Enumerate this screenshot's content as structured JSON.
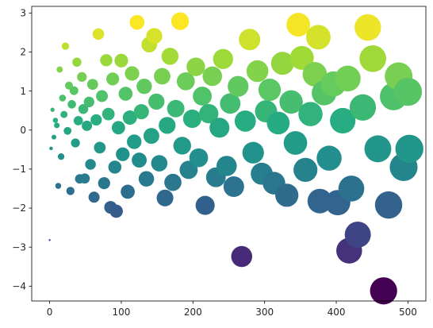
{
  "chart_data": {
    "type": "scatter",
    "title": "",
    "xlabel": "",
    "ylabel": "",
    "xlim": [
      -25,
      525
    ],
    "ylim": [
      -4.38,
      3.17
    ],
    "x_ticks": [
      0,
      100,
      200,
      300,
      400,
      500
    ],
    "y_ticks": [
      -4,
      -3,
      -2,
      -1,
      0,
      1,
      2,
      3
    ],
    "x_tick_labels": [
      "0",
      "100",
      "200",
      "300",
      "400",
      "500"
    ],
    "y_tick_labels": [
      "−4",
      "−3",
      "−2",
      "−1",
      "0",
      "1",
      "2",
      "3"
    ],
    "colormap": "viridis",
    "color_encodes": "y",
    "size_encodes": "x",
    "grid": false,
    "legend": "none",
    "points_sampled": [
      {
        "x": 0,
        "y": -2.82
      },
      {
        "x": 2,
        "y": -0.47
      },
      {
        "x": 4,
        "y": 0.52
      },
      {
        "x": 6,
        "y": -0.18
      },
      {
        "x": 8,
        "y": 0.25
      },
      {
        "x": 10,
        "y": 0.12
      },
      {
        "x": 12,
        "y": -1.43
      },
      {
        "x": 14,
        "y": 1.55
      },
      {
        "x": 16,
        "y": -0.68
      },
      {
        "x": 18,
        "y": 0.82
      },
      {
        "x": 20,
        "y": 0.4
      },
      {
        "x": 22,
        "y": 2.15
      },
      {
        "x": 25,
        "y": -0.02
      },
      {
        "x": 27,
        "y": 1.14
      },
      {
        "x": 29,
        "y": -1.56
      },
      {
        "x": 31,
        "y": 0.66
      },
      {
        "x": 34,
        "y": 1.01
      },
      {
        "x": 36,
        "y": -0.33
      },
      {
        "x": 38,
        "y": 1.74
      },
      {
        "x": 40,
        "y": 0.24
      },
      {
        "x": 42,
        "y": -1.25
      },
      {
        "x": 45,
        "y": 1.36
      },
      {
        "x": 47,
        "y": 0.54
      },
      {
        "x": 49,
        "y": -1.24
      },
      {
        "x": 52,
        "y": 0.11
      },
      {
        "x": 55,
        "y": 0.72
      },
      {
        "x": 57,
        "y": -0.88
      },
      {
        "x": 60,
        "y": 1.17
      },
      {
        "x": 62,
        "y": -1.72
      },
      {
        "x": 65,
        "y": 0.26
      },
      {
        "x": 68,
        "y": 2.46
      },
      {
        "x": 70,
        "y": -0.45
      },
      {
        "x": 73,
        "y": 0.87
      },
      {
        "x": 76,
        "y": -1.36
      },
      {
        "x": 79,
        "y": 1.79
      },
      {
        "x": 82,
        "y": 0.41
      },
      {
        "x": 85,
        "y": -1.98
      },
      {
        "x": 88,
        "y": 1.31
      },
      {
        "x": 91,
        "y": -0.95
      },
      {
        "x": 93,
        "y": -2.08
      },
      {
        "x": 96,
        "y": 0.06
      },
      {
        "x": 100,
        "y": 1.78
      },
      {
        "x": 102,
        "y": -0.62
      },
      {
        "x": 106,
        "y": 0.93
      },
      {
        "x": 109,
        "y": -1.58
      },
      {
        "x": 112,
        "y": 0.32
      },
      {
        "x": 115,
        "y": 1.45
      },
      {
        "x": 118,
        "y": -0.3
      },
      {
        "x": 122,
        "y": 2.76
      },
      {
        "x": 125,
        "y": -0.77
      },
      {
        "x": 128,
        "y": 0.47
      },
      {
        "x": 132,
        "y": 1.12
      },
      {
        "x": 135,
        "y": -1.25
      },
      {
        "x": 139,
        "y": 2.19
      },
      {
        "x": 142,
        "y": -0.15
      },
      {
        "x": 146,
        "y": 2.41
      },
      {
        "x": 149,
        "y": 0.73
      },
      {
        "x": 153,
        "y": -0.85
      },
      {
        "x": 157,
        "y": 1.38
      },
      {
        "x": 161,
        "y": -1.74
      },
      {
        "x": 164,
        "y": 0.12
      },
      {
        "x": 168,
        "y": 1.89
      },
      {
        "x": 172,
        "y": -1.34
      },
      {
        "x": 176,
        "y": 0.55
      },
      {
        "x": 182,
        "y": 2.79
      },
      {
        "x": 185,
        "y": -0.4
      },
      {
        "x": 190,
        "y": 1.25
      },
      {
        "x": 194,
        "y": -1.02
      },
      {
        "x": 199,
        "y": 0.29
      },
      {
        "x": 204,
        "y": 1.62
      },
      {
        "x": 208,
        "y": -0.71
      },
      {
        "x": 213,
        "y": 0.87
      },
      {
        "x": 217,
        "y": -1.93
      },
      {
        "x": 222,
        "y": 0.42
      },
      {
        "x": 227,
        "y": 1.38
      },
      {
        "x": 232,
        "y": -1.21
      },
      {
        "x": 237,
        "y": 0.06
      },
      {
        "x": 242,
        "y": 1.82
      },
      {
        "x": 247,
        "y": -0.92
      },
      {
        "x": 252,
        "y": 0.68
      },
      {
        "x": 257,
        "y": -1.45
      },
      {
        "x": 263,
        "y": 1.12
      },
      {
        "x": 268,
        "y": -3.24
      },
      {
        "x": 273,
        "y": 0.23
      },
      {
        "x": 279,
        "y": 2.32
      },
      {
        "x": 284,
        "y": -0.58
      },
      {
        "x": 290,
        "y": 1.51
      },
      {
        "x": 296,
        "y": -1.12
      },
      {
        "x": 302,
        "y": 0.48
      },
      {
        "x": 307,
        "y": 1.03
      },
      {
        "x": 313,
        "y": -1.36
      },
      {
        "x": 319,
        "y": 0.18
      },
      {
        "x": 325,
        "y": 1.71
      },
      {
        "x": 331,
        "y": -1.67
      },
      {
        "x": 337,
        "y": 0.72
      },
      {
        "x": 343,
        "y": -0.33
      },
      {
        "x": 347,
        "y": 2.7
      },
      {
        "x": 352,
        "y": 1.85
      },
      {
        "x": 357,
        "y": -1.02
      },
      {
        "x": 364,
        "y": 0.41
      },
      {
        "x": 370,
        "y": 1.43
      },
      {
        "x": 375,
        "y": 2.38
      },
      {
        "x": 377,
        "y": -1.82
      },
      {
        "x": 383,
        "y": 0.95
      },
      {
        "x": 390,
        "y": -0.72
      },
      {
        "x": 396,
        "y": 1.18
      },
      {
        "x": 402,
        "y": -1.86
      },
      {
        "x": 409,
        "y": 0.24
      },
      {
        "x": 416,
        "y": 1.32
      },
      {
        "x": 418,
        "y": -3.09
      },
      {
        "x": 421,
        "y": -1.5
      },
      {
        "x": 430,
        "y": -2.68
      },
      {
        "x": 437,
        "y": 0.58
      },
      {
        "x": 444,
        "y": 2.63
      },
      {
        "x": 451,
        "y": 1.83
      },
      {
        "x": 458,
        "y": -0.48
      },
      {
        "x": 466,
        "y": -4.12
      },
      {
        "x": 473,
        "y": -1.92
      },
      {
        "x": 480,
        "y": 0.86
      },
      {
        "x": 487,
        "y": 1.38
      },
      {
        "x": 494,
        "y": -0.95
      },
      {
        "x": 500,
        "y": 0.98
      },
      {
        "x": 502,
        "y": -0.48
      }
    ]
  }
}
